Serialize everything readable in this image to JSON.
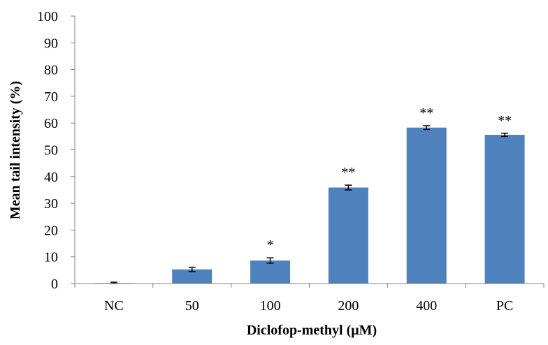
{
  "chart_data": {
    "type": "bar",
    "title": "",
    "xlabel": "Diclofop-methyl  (μM)",
    "ylabel": "Mean tail intensity  (%)",
    "categories": [
      "NC",
      "50",
      "100",
      "200",
      "400",
      "PC"
    ],
    "values": [
      0.2,
      5.3,
      8.6,
      35.9,
      58.3,
      55.6
    ],
    "errors": [
      0.3,
      0.8,
      1.0,
      0.9,
      0.7,
      0.6
    ],
    "significance": [
      "",
      "",
      "*",
      "**",
      "**",
      "**"
    ],
    "ylim": [
      0,
      100
    ],
    "yticks": [
      0,
      10,
      20,
      30,
      40,
      50,
      60,
      70,
      80,
      90,
      100
    ],
    "grid": false,
    "legend": "none",
    "colors": {
      "bar": "#4f81bd",
      "axis": "#808080",
      "error_bar": "#000000"
    }
  }
}
